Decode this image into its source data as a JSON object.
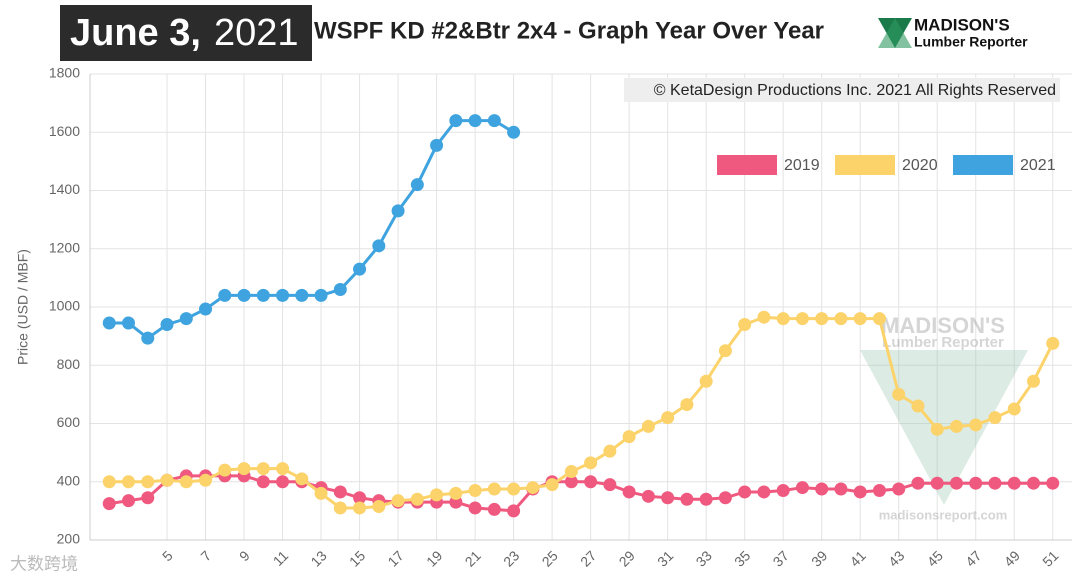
{
  "header": {
    "date_main": "June 3,",
    "date_year": "2021",
    "logo_name": "MADISON'S",
    "logo_sub": "Lumber Reporter"
  },
  "watermark": {
    "name": "MADISON'S",
    "sub": "Lumber Reporter",
    "url": "madisonsreport.com",
    "corner_mark": "大数跨境"
  },
  "chart_data": {
    "type": "line",
    "title": "WSPF KD #2&Btr 2x4 - Graph Year Over Year",
    "copyright": "© KetaDesign Productions Inc. 2021 All Rights Reserved",
    "y_label": "Price (USD / MBF)",
    "x": [
      2,
      3,
      4,
      5,
      6,
      7,
      8,
      9,
      10,
      11,
      12,
      13,
      14,
      15,
      16,
      17,
      18,
      19,
      20,
      21,
      22,
      23,
      24,
      25,
      26,
      27,
      28,
      29,
      30,
      31,
      32,
      33,
      34,
      35,
      36,
      37,
      38,
      39,
      40,
      41,
      42,
      43,
      44,
      45,
      46,
      47,
      48,
      49,
      50,
      51
    ],
    "xlim": [
      1,
      52
    ],
    "xticks": [
      5,
      7,
      9,
      11,
      13,
      15,
      17,
      19,
      21,
      23,
      25,
      27,
      29,
      31,
      33,
      35,
      37,
      39,
      41,
      43,
      45,
      47,
      49,
      51
    ],
    "ylim": [
      200,
      1800
    ],
    "yticks": [
      200,
      400,
      600,
      800,
      1000,
      1200,
      1400,
      1600,
      1800
    ],
    "grid": true,
    "legend": "top-right",
    "series": [
      {
        "name": "2019",
        "color": "#f0597f",
        "values": [
          325,
          335,
          345,
          405,
          420,
          420,
          420,
          420,
          400,
          400,
          400,
          380,
          365,
          345,
          335,
          330,
          330,
          330,
          330,
          310,
          305,
          300,
          375,
          400,
          400,
          400,
          390,
          365,
          350,
          345,
          340,
          340,
          345,
          365,
          365,
          370,
          380,
          375,
          375,
          365,
          370,
          375,
          395,
          395,
          395,
          395,
          395,
          395,
          395,
          395
        ]
      },
      {
        "name": "2020",
        "color": "#fcd36a",
        "values": [
          400,
          400,
          400,
          405,
          400,
          405,
          440,
          445,
          445,
          445,
          410,
          360,
          310,
          310,
          315,
          335,
          340,
          355,
          360,
          370,
          375,
          375,
          380,
          390,
          435,
          465,
          505,
          555,
          590,
          620,
          665,
          745,
          850,
          940,
          965,
          960,
          960,
          960,
          960,
          960,
          960,
          700,
          660,
          580,
          590,
          595,
          620,
          650,
          745,
          875
        ]
      },
      {
        "name": "2021",
        "color": "#3ea3de",
        "values": [
          945,
          945,
          893,
          940,
          960,
          993,
          1040,
          1040,
          1040,
          1040,
          1040,
          1040,
          1060,
          1130,
          1210,
          1330,
          1420,
          1555,
          1640,
          1640,
          1640,
          1600,
          null,
          null,
          null,
          null,
          null,
          null,
          null,
          null,
          null,
          null,
          null,
          null,
          null,
          null,
          null,
          null,
          null,
          null,
          null,
          null,
          null,
          null,
          null,
          null,
          null,
          null,
          null,
          null
        ]
      }
    ]
  }
}
